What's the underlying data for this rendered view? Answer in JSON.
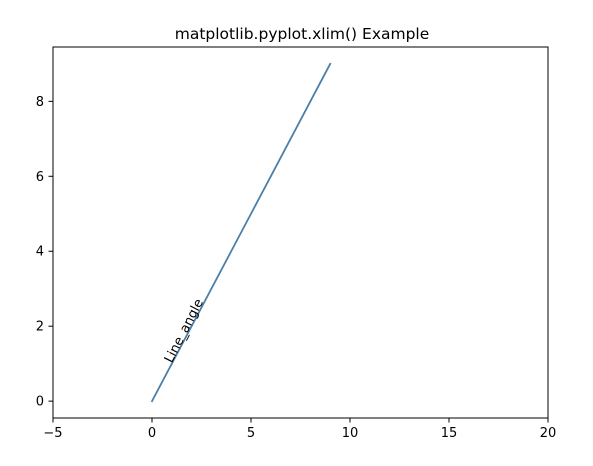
{
  "chart_data": {
    "type": "line",
    "title": "matplotlib.pyplot.xlim() Example",
    "xlabel": "",
    "ylabel": "",
    "xlim": [
      -5,
      20
    ],
    "ylim": [
      -0.45,
      9.45
    ],
    "xticks": [
      -5,
      0,
      5,
      10,
      15,
      20
    ],
    "yticks": [
      0,
      2,
      4,
      6,
      8
    ],
    "grid": false,
    "series": [
      {
        "color": "#4c7fa8",
        "x": [
          0,
          1,
          2,
          3,
          4,
          5,
          6,
          7,
          8,
          9
        ],
        "y": [
          0,
          1,
          2,
          3,
          4,
          5,
          6,
          7,
          8,
          9
        ]
      }
    ],
    "annotations": [
      {
        "text": "Line_angle",
        "x": 1,
        "y": 1,
        "rotation_deg": 63
      }
    ]
  }
}
